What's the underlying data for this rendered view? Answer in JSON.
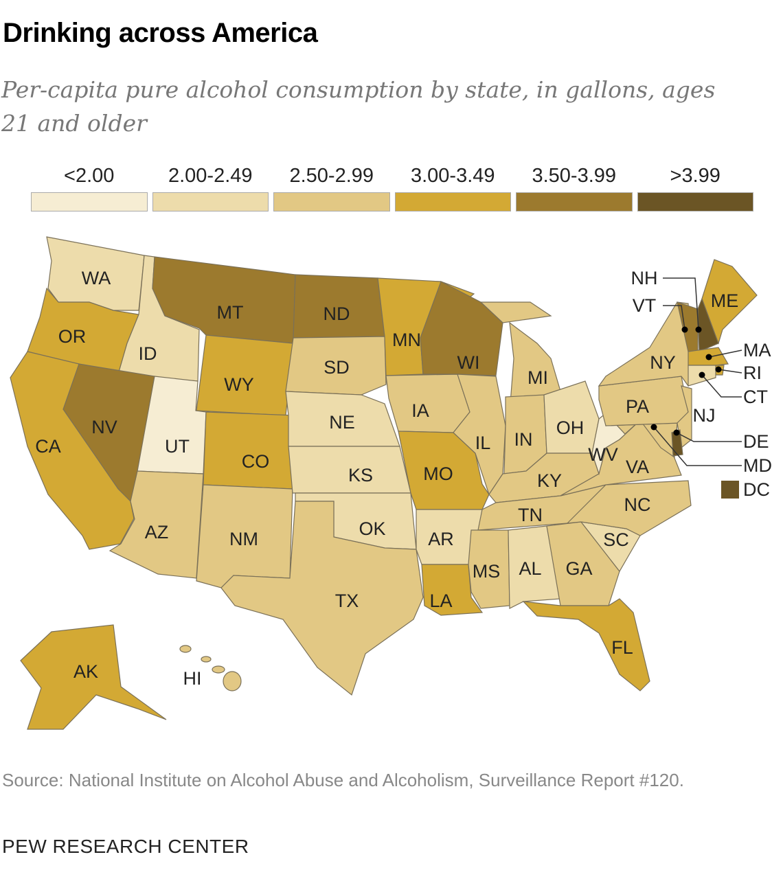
{
  "title": "Drinking across America",
  "subtitle": "Per-capita pure alcohol consumption by state, in gallons, ages 21 and older",
  "legend": [
    {
      "label": "<2.00",
      "color": "#f6edd3"
    },
    {
      "label": "2.00-2.49",
      "color": "#eddcab"
    },
    {
      "label": "2.50-2.99",
      "color": "#e2c884"
    },
    {
      "label": "3.00-3.49",
      "color": "#d3a934"
    },
    {
      "label": "3.50-3.99",
      "color": "#9c7a2e"
    },
    {
      "label": ">3.99",
      "color": "#6b5525"
    }
  ],
  "states": {
    "WA": 1,
    "OR": 3,
    "CA": 3,
    "ID": 1,
    "NV": 4,
    "UT": 0,
    "AZ": 2,
    "MT": 4,
    "WY": 3,
    "CO": 3,
    "NM": 2,
    "ND": 4,
    "SD": 2,
    "NE": 1,
    "KS": 1,
    "OK": 1,
    "TX": 2,
    "MN": 3,
    "IA": 2,
    "MO": 3,
    "AR": 1,
    "LA": 3,
    "WI": 4,
    "IL": 2,
    "MI": 2,
    "IN": 2,
    "OH": 1,
    "KY": 2,
    "TN": 2,
    "MS": 2,
    "AL": 1,
    "GA": 2,
    "FL": 3,
    "SC": 1,
    "NC": 2,
    "VA": 2,
    "WV": 0,
    "PA": 2,
    "NY": 2,
    "NJ": 2,
    "DE": 5,
    "MD": 2,
    "VT": 4,
    "NH": 5,
    "ME": 3,
    "MA": 3,
    "RI": 3,
    "CT": 1,
    "DC": 5,
    "AK": 3,
    "HI": 2
  },
  "labels": {
    "WA": "WA",
    "OR": "OR",
    "CA": "CA",
    "ID": "ID",
    "NV": "NV",
    "UT": "UT",
    "AZ": "AZ",
    "MT": "MT",
    "WY": "WY",
    "CO": "CO",
    "NM": "NM",
    "ND": "ND",
    "SD": "SD",
    "NE": "NE",
    "KS": "KS",
    "OK": "OK",
    "TX": "TX",
    "MN": "MN",
    "IA": "IA",
    "MO": "MO",
    "AR": "AR",
    "LA": "LA",
    "WI": "WI",
    "IL": "IL",
    "MI": "MI",
    "IN": "IN",
    "OH": "OH",
    "KY": "KY",
    "TN": "TN",
    "MS": "MS",
    "AL": "AL",
    "GA": "GA",
    "FL": "FL",
    "SC": "SC",
    "NC": "NC",
    "VA": "VA",
    "WV": "WV",
    "PA": "PA",
    "NY": "NY",
    "NJ": "NJ",
    "DE": "DE",
    "MD": "MD",
    "VT": "VT",
    "NH": "NH",
    "ME": "ME",
    "MA": "MA",
    "RI": "RI",
    "CT": "CT",
    "DC": "DC",
    "AK": "AK",
    "HI": "HI"
  },
  "source": "Source: National Institute on Alcohol Abuse and Alcoholism, Surveillance Report #120.",
  "credit": "PEW RESEARCH CENTER"
}
